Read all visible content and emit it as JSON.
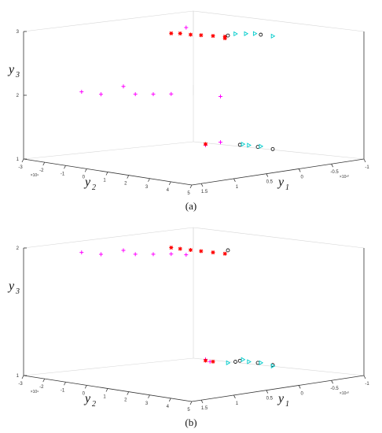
{
  "chart_data": [
    {
      "type": "scatter",
      "title": "",
      "caption": "(a)",
      "y2_label": "y",
      "y2_sub": "2",
      "y1_label": "y",
      "y1_sub": "1",
      "y3_label": "y",
      "y3_sub": "3",
      "y3_ticks": [
        "3",
        "2",
        "1"
      ],
      "y2_ticks": [
        "-3",
        "-2",
        "-1",
        "0",
        "1",
        "2",
        "3",
        "4",
        "5"
      ],
      "y2_exponent": "×10⁹",
      "y1_ticks": [
        "1.5",
        "1",
        "0.5",
        "0",
        "-0.5",
        "-1"
      ],
      "y1_exponent": "×10¹⁰",
      "grid": true,
      "series": [
        {
          "color": "#ff00ff",
          "marker": "plus",
          "points": [
            [
              0.02,
              0.55,
              2.0
            ],
            [
              0.15,
              0.6,
              1.95
            ],
            [
              0.3,
              0.52,
              2.1
            ],
            [
              0.38,
              0.62,
              1.95
            ],
            [
              0.5,
              0.62,
              1.95
            ],
            [
              0.62,
              0.65,
              1.95
            ],
            [
              0.95,
              0.7,
              1.9
            ],
            [
              0.72,
              0.98,
              3.1
            ],
            [
              0.95,
              0.98,
              1.05
            ],
            [
              0.85,
              0.95,
              1.0
            ]
          ]
        },
        {
          "color": "#ff0000",
          "marker": "star",
          "points": [
            [
              0.62,
              0.95,
              3.0
            ],
            [
              0.68,
              0.94,
              3.0
            ],
            [
              0.75,
              0.93,
              2.98
            ],
            [
              0.82,
              0.92,
              2.97
            ],
            [
              0.9,
              0.9,
              2.96
            ],
            [
              0.98,
              0.88,
              2.95
            ],
            [
              0.98,
              0.88,
              2.92
            ],
            [
              0.85,
              0.95,
              1.02
            ]
          ]
        },
        {
          "color": "#000000",
          "marker": "circle",
          "points": [
            [
              1.0,
              0.88,
              2.97
            ],
            [
              1.22,
              0.92,
              2.98
            ],
            [
              1.08,
              0.92,
              1.01
            ],
            [
              1.2,
              0.94,
              0.97
            ],
            [
              1.3,
              0.95,
              0.93
            ]
          ]
        },
        {
          "color": "#00cccc",
          "marker": "triangle",
          "points": [
            [
              1.05,
              0.88,
              3.0
            ],
            [
              1.12,
              0.9,
              3.0
            ],
            [
              1.18,
              0.92,
              3.0
            ],
            [
              1.3,
              0.96,
              2.95
            ],
            [
              1.1,
              0.93,
              1.02
            ],
            [
              1.14,
              0.94,
              1.0
            ],
            [
              1.22,
              0.95,
              0.98
            ]
          ]
        }
      ]
    },
    {
      "type": "scatter",
      "title": "",
      "caption": "(b)",
      "y2_label": "y",
      "y2_sub": "2",
      "y1_label": "y",
      "y1_sub": "1",
      "y3_label": "y",
      "y3_sub": "3",
      "y3_ticks": [
        "2",
        "1"
      ],
      "y2_ticks": [
        "-3",
        "-2",
        "-1",
        "0",
        "1",
        "2",
        "3",
        "4",
        "5"
      ],
      "y2_exponent": "×10⁹",
      "y1_ticks": [
        "1.5",
        "1",
        "0.5",
        "0",
        "-0.5",
        "-1"
      ],
      "y1_exponent": "×10¹⁰",
      "grid": true,
      "series": [
        {
          "color": "#ff00ff",
          "marker": "plus",
          "points": [
            [
              0.02,
              0.55,
              2.0
            ],
            [
              0.15,
              0.6,
              1.98
            ],
            [
              0.3,
              0.52,
              2.02
            ],
            [
              0.38,
              0.62,
              1.98
            ],
            [
              0.5,
              0.62,
              1.98
            ],
            [
              0.62,
              0.65,
              1.98
            ],
            [
              0.72,
              0.7,
              1.97
            ],
            [
              0.85,
              0.95,
              1.02
            ],
            [
              0.88,
              0.95,
              1.0
            ]
          ]
        },
        {
          "color": "#ff0000",
          "marker": "star",
          "points": [
            [
              0.62,
              0.95,
              2.02
            ],
            [
              0.68,
              0.94,
              2.01
            ],
            [
              0.75,
              0.93,
              2.0
            ],
            [
              0.82,
              0.92,
              1.99
            ],
            [
              0.9,
              0.9,
              1.98
            ],
            [
              0.98,
              0.88,
              1.97
            ],
            [
              0.85,
              0.95,
              1.01
            ],
            [
              0.9,
              0.96,
              1.0
            ]
          ]
        },
        {
          "color": "#000000",
          "marker": "circle",
          "points": [
            [
              1.0,
              0.88,
              2.0
            ],
            [
              1.08,
              0.92,
              1.01
            ],
            [
              1.2,
              0.94,
              0.99
            ],
            [
              1.3,
              0.95,
              0.97
            ],
            [
              1.05,
              0.93,
              1.0
            ]
          ]
        },
        {
          "color": "#00cccc",
          "marker": "triangle",
          "points": [
            [
              1.1,
              0.93,
              1.02
            ],
            [
              1.14,
              0.94,
              1.0
            ],
            [
              1.22,
              0.95,
              0.99
            ],
            [
              1.3,
              0.97,
              0.96
            ],
            [
              1.0,
              0.95,
              0.99
            ]
          ]
        }
      ]
    }
  ]
}
